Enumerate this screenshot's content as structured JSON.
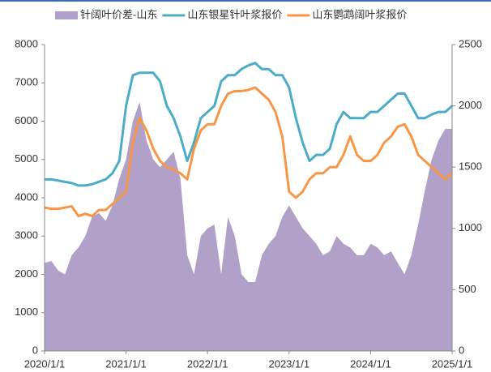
{
  "chart_data": {
    "type": "line",
    "x": [
      "2020/1/1",
      "2020/2/1",
      "2020/3/1",
      "2020/4/1",
      "2020/5/1",
      "2020/6/1",
      "2020/7/1",
      "2020/8/1",
      "2020/9/1",
      "2020/10/1",
      "2020/11/1",
      "2020/12/1",
      "2021/1/1",
      "2021/2/1",
      "2021/3/1",
      "2021/4/1",
      "2021/5/1",
      "2021/6/1",
      "2021/7/1",
      "2021/8/1",
      "2021/9/1",
      "2021/10/1",
      "2021/11/1",
      "2021/12/1",
      "2022/1/1",
      "2022/2/1",
      "2022/3/1",
      "2022/4/1",
      "2022/5/1",
      "2022/6/1",
      "2022/7/1",
      "2022/8/1",
      "2022/9/1",
      "2022/10/1",
      "2022/11/1",
      "2022/12/1",
      "2023/1/1",
      "2023/2/1",
      "2023/3/1",
      "2023/4/1",
      "2023/5/1",
      "2023/6/1",
      "2023/7/1",
      "2023/8/1",
      "2023/9/1",
      "2023/10/1",
      "2023/11/1",
      "2023/12/1",
      "2024/1/1",
      "2024/2/1",
      "2024/3/1",
      "2024/4/1",
      "2024/5/1",
      "2024/6/1",
      "2024/7/1",
      "2024/8/1",
      "2024/9/1",
      "2024/10/1",
      "2024/11/1",
      "2024/12/1",
      "2025/1/1"
    ],
    "series": [
      {
        "name": "针阔叶价差-山东",
        "color": "#b1a0c7",
        "kind": "area",
        "values": [
          2300,
          2350,
          2100,
          2000,
          2500,
          2700,
          3000,
          3500,
          3600,
          3400,
          3800,
          4500,
          5000,
          6000,
          6500,
          5500,
          5000,
          4800,
          5000,
          5200,
          4500,
          2500,
          2000,
          3000,
          3200,
          3300,
          2000,
          3500,
          3000,
          2000,
          1800,
          1800,
          2500,
          2800,
          3000,
          3500,
          3800,
          3500,
          3200,
          3000,
          2800,
          2500,
          2600,
          3000,
          2800,
          2700,
          2500,
          2500,
          2800,
          2700,
          2500,
          2600,
          2300,
          2000,
          2500,
          3300,
          4200,
          5000,
          5500,
          5800,
          5800
        ]
      },
      {
        "name": "山东银星针叶浆报价",
        "color": "#4bacc6",
        "axis": "y2",
        "values": [
          1400,
          1400,
          1390,
          1380,
          1370,
          1350,
          1350,
          1360,
          1380,
          1400,
          1450,
          1550,
          2000,
          2250,
          2270,
          2270,
          2270,
          2200,
          2000,
          1900,
          1750,
          1550,
          1700,
          1900,
          1950,
          2000,
          2200,
          2250,
          2250,
          2300,
          2330,
          2350,
          2300,
          2300,
          2250,
          2250,
          2150,
          1900,
          1700,
          1550,
          1600,
          1600,
          1650,
          1850,
          1950,
          1900,
          1900,
          1900,
          1950,
          1950,
          2000,
          2050,
          2100,
          2100,
          2000,
          1900,
          1900,
          1930,
          1950,
          1950,
          2000
        ]
      },
      {
        "name": "山东鹦鹉阔叶浆报价",
        "color": "#f79646",
        "axis": "y2",
        "values": [
          1170,
          1160,
          1160,
          1170,
          1180,
          1100,
          1120,
          1100,
          1150,
          1150,
          1200,
          1250,
          1300,
          1700,
          1900,
          1800,
          1650,
          1550,
          1500,
          1480,
          1450,
          1400,
          1650,
          1800,
          1850,
          1850,
          2000,
          2100,
          2120,
          2120,
          2130,
          2150,
          2100,
          2050,
          1950,
          1750,
          1300,
          1250,
          1300,
          1400,
          1450,
          1450,
          1500,
          1500,
          1600,
          1750,
          1600,
          1550,
          1550,
          1600,
          1700,
          1750,
          1830,
          1850,
          1750,
          1600,
          1550,
          1500,
          1450,
          1400,
          1450
        ]
      }
    ],
    "xticks": [
      "2020/1/1",
      "2021/1/1",
      "2022/1/1",
      "2023/1/1",
      "2024/1/1",
      "2025/1/1"
    ],
    "ylim": [
      0,
      8000
    ],
    "yticks": [
      0,
      1000,
      2000,
      3000,
      4000,
      5000,
      6000,
      7000,
      8000
    ],
    "y2lim": [
      0,
      2500
    ],
    "y2ticks": [
      0,
      500,
      1000,
      1500,
      2000,
      2500
    ]
  }
}
